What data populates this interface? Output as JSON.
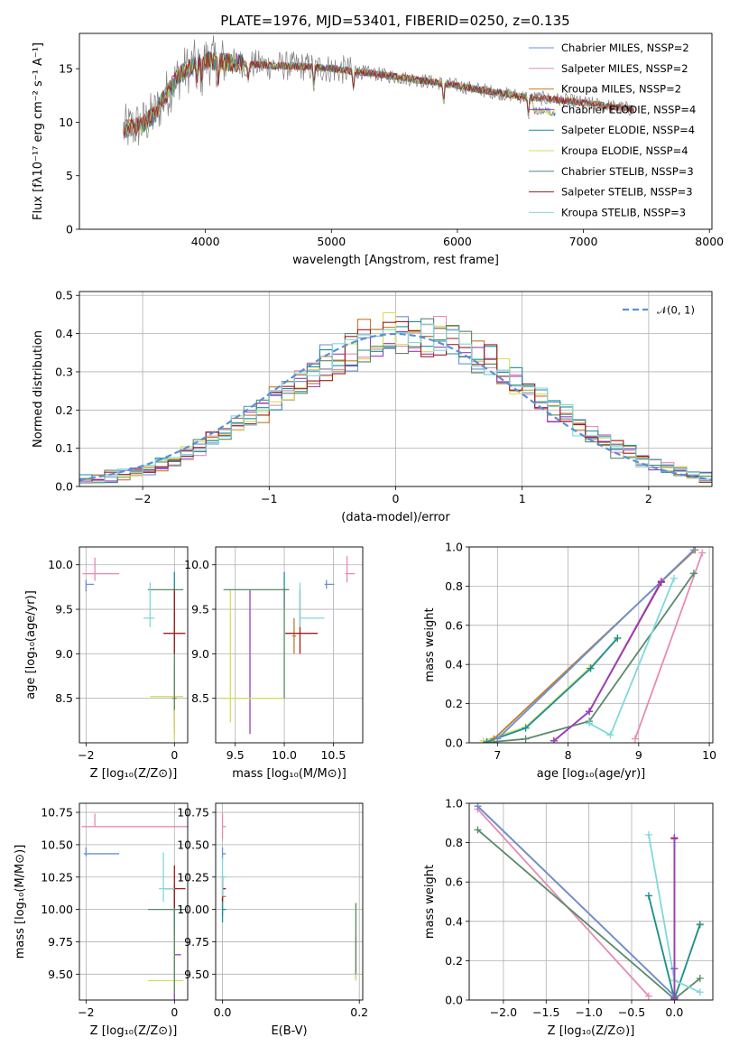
{
  "figure": {
    "title": "PLATE=1976, MJD=53401, FIBERID=0250, z=0.135"
  },
  "palette": {
    "Chabrier MILES": "#6b8fd8",
    "Salpeter MILES": "#e68bb5",
    "Kroupa MILES": "#c27b2b",
    "Chabrier ELODIE": "#9b3fbf",
    "Salpeter ELODIE": "#1b8f9b",
    "Kroupa ELODIE": "#d7dd5f",
    "Chabrier STELIB": "#5a8a6a",
    "Salpeter STELIB": "#a01e1e",
    "Kroupa STELIB": "#7fd8dc",
    "data": "#808080",
    "gaussian": "#5b8fd6"
  },
  "chart_data": [
    {
      "id": "spectrum",
      "type": "line",
      "title": "PLATE=1976, MJD=53401, FIBERID=0250, z=0.135",
      "xlabel": "wavelength [Angstrom, rest frame]",
      "ylabel": "Flux [fλ10⁻¹⁷ erg cm⁻² s⁻¹ A⁻¹]",
      "xlim": [
        3000,
        8020
      ],
      "ylim": [
        0,
        18.3
      ],
      "xticks": [
        4000,
        5000,
        6000,
        7000,
        8000
      ],
      "yticks": [
        0,
        5,
        10,
        15
      ],
      "grid": false,
      "legend_position": "top-right",
      "legend": [
        "Chabrier MILES, NSSP=2",
        "Salpeter MILES, NSSP=2",
        "Kroupa MILES, NSSP=2",
        "Chabrier ELODIE, NSSP=4",
        "Salpeter ELODIE, NSSP=4",
        "Kroupa ELODIE, NSSP=4",
        "Chabrier STELIB, NSSP=3",
        "Salpeter STELIB, NSSP=3",
        "Kroupa STELIB, NSSP=3"
      ],
      "continuum": {
        "x": [
          3350,
          3500,
          3600,
          3700,
          3800,
          3900,
          4000,
          4200,
          4500,
          4800,
          5000,
          5300,
          5600,
          5900,
          6200,
          6500,
          6800,
          7000,
          7200,
          7400
        ],
        "y": [
          9.3,
          9.8,
          10.8,
          12.8,
          14.5,
          15.3,
          15.8,
          15.6,
          15.3,
          15.2,
          15.0,
          14.6,
          14.1,
          13.6,
          13.0,
          12.4,
          12.1,
          11.8,
          11.5,
          11.2
        ]
      }
    },
    {
      "id": "residuals",
      "type": "line",
      "xlabel": "(data-model)/error",
      "ylabel": "Normed distribution",
      "xlim": [
        -2.5,
        2.5
      ],
      "ylim": [
        0,
        0.51
      ],
      "xticks": [
        -2,
        -1,
        0,
        1,
        2
      ],
      "yticks": [
        0.0,
        0.1,
        0.2,
        0.3,
        0.4,
        0.5
      ],
      "grid": true,
      "legend_position": "top-right",
      "legend": [
        "𝒩(0, 1)"
      ]
    },
    {
      "id": "age_vs_Z",
      "type": "scatter",
      "xlabel": "Z [log₁₀(Z/Z⊙)]",
      "ylabel": "age  [log₁₀(age/yr)]",
      "xlim": [
        -2.15,
        0.3
      ],
      "ylim": [
        8.0,
        10.2
      ],
      "xticks": [
        -2,
        0
      ],
      "yticks": [
        8.5,
        9.0,
        9.5,
        10.0
      ],
      "grid": true
    },
    {
      "id": "age_vs_mass",
      "type": "scatter",
      "xlabel": "mass [log₁₀(M/M⊙)]",
      "xlim": [
        9.3,
        10.8
      ],
      "ylim": [
        8.0,
        10.2
      ],
      "xticks": [
        9.5,
        10.0,
        10.5
      ],
      "yticks": [
        8.5,
        9.0,
        9.5,
        10.0
      ],
      "grid": true
    },
    {
      "id": "mw_vs_age",
      "type": "line",
      "xlabel": "age  [log₁₀(age/yr)]",
      "ylabel": "mass weight",
      "xlim": [
        6.6,
        10.05
      ],
      "ylim": [
        0,
        1.0
      ],
      "xticks": [
        7,
        8,
        9,
        10
      ],
      "yticks": [
        0.0,
        0.2,
        0.4,
        0.6,
        0.8,
        1.0
      ],
      "grid": true
    },
    {
      "id": "mass_vs_Z",
      "type": "scatter",
      "xlabel": "Z [log₁₀(Z/Z⊙)]",
      "ylabel": "mass [log₁₀(M/M⊙)]",
      "xlim": [
        -2.15,
        0.3
      ],
      "ylim": [
        9.3,
        10.82
      ],
      "xticks": [
        -2,
        0
      ],
      "yticks": [
        9.5,
        9.75,
        10.0,
        10.25,
        10.5,
        10.75
      ],
      "grid": true
    },
    {
      "id": "mass_vs_ebv",
      "type": "scatter",
      "xlabel": "E(B-V)",
      "xlim": [
        -0.01,
        0.205
      ],
      "ylim": [
        9.3,
        10.82
      ],
      "xticks": [
        0.0,
        0.2
      ],
      "yticks": [
        9.5,
        9.75,
        10.0,
        10.25,
        10.5,
        10.75
      ],
      "grid": true
    },
    {
      "id": "mw_vs_Z",
      "type": "line",
      "xlabel": "Z [log₁₀(Z/Z⊙)]",
      "ylabel": "mass weight",
      "xlim": [
        -2.4,
        0.45
      ],
      "ylim": [
        0,
        1.0
      ],
      "xticks": [
        -2.0,
        -1.5,
        -1.0,
        -0.5,
        0.0
      ],
      "yticks": [
        0.0,
        0.2,
        0.4,
        0.6,
        0.8,
        1.0
      ],
      "grid": true
    }
  ],
  "series": {
    "age_vs_Z": [
      {
        "model": "Chabrier MILES",
        "x": -2.0,
        "y": 9.78,
        "xerr": [
          0.0,
          0.18
        ],
        "yerr": [
          0.08,
          0.05
        ]
      },
      {
        "model": "Salpeter MILES",
        "x": -1.8,
        "y": 9.9,
        "xerr": [
          0.28,
          0.55
        ],
        "yerr": [
          0.08,
          0.18
        ]
      },
      {
        "model": "Kroupa MILES",
        "x": 0.0,
        "y": 8.5,
        "xerr": [
          0.05,
          0.05
        ],
        "yerr": [
          0.4,
          0.3
        ]
      },
      {
        "model": "Chabrier ELODIE",
        "x": 0.0,
        "y": 8.5,
        "xerr": [
          0.02,
          0.02
        ],
        "yerr": [
          0.3,
          0.35
        ]
      },
      {
        "model": "Salpeter ELODIE",
        "x": 0.0,
        "y": 9.72,
        "xerr": [
          0.01,
          0.01
        ],
        "yerr": [
          0.2,
          0.2
        ]
      },
      {
        "model": "Kroupa ELODIE",
        "x": 0.0,
        "y": 8.52,
        "xerr": [
          0.55,
          0.2
        ],
        "yerr": [
          0.5,
          0.5
        ]
      },
      {
        "model": "Chabrier STELIB",
        "x": 0.0,
        "y": 9.72,
        "xerr": [
          0.6,
          0.2
        ],
        "yerr": [
          1.35,
          0.0
        ]
      },
      {
        "model": "Salpeter STELIB",
        "x": 0.0,
        "y": 9.23,
        "xerr": [
          0.25,
          0.25
        ],
        "yerr": [
          0.23,
          0.49
        ]
      },
      {
        "model": "Kroupa STELIB",
        "x": -0.55,
        "y": 9.4,
        "xerr": [
          0.15,
          0.1
        ],
        "yerr": [
          0.1,
          0.4
        ]
      }
    ],
    "age_vs_mass": [
      {
        "model": "Chabrier MILES",
        "x": 10.43,
        "y": 9.78,
        "xerr": [
          0.02,
          0.08
        ],
        "yerr": [
          0.05,
          0.05
        ]
      },
      {
        "model": "Salpeter MILES",
        "x": 10.64,
        "y": 9.9,
        "xerr": [
          0.02,
          0.08
        ],
        "yerr": [
          0.1,
          0.2
        ]
      },
      {
        "model": "Kroupa MILES",
        "x": 10.1,
        "y": 9.2,
        "xerr": [
          0.02,
          0.02
        ],
        "yerr": [
          0.2,
          0.2
        ]
      },
      {
        "model": "Chabrier ELODIE",
        "x": 9.65,
        "y": 9.72,
        "xerr": [
          0.0,
          0.0
        ],
        "yerr": [
          1.62,
          0.0
        ]
      },
      {
        "model": "Salpeter ELODIE",
        "x": 10.0,
        "y": 9.72,
        "xerr": [
          0.02,
          0.02
        ],
        "yerr": [
          0.2,
          0.2
        ]
      },
      {
        "model": "Kroupa ELODIE",
        "x": 9.45,
        "y": 8.5,
        "xerr": [
          0.1,
          0.55
        ],
        "yerr": [
          0.27,
          1.22
        ]
      },
      {
        "model": "Chabrier STELIB",
        "x": 10.0,
        "y": 9.72,
        "xerr": [
          0.62,
          0.05
        ],
        "yerr": [
          1.22,
          0.0
        ]
      },
      {
        "model": "Salpeter STELIB",
        "x": 10.16,
        "y": 9.23,
        "xerr": [
          0.15,
          0.18
        ],
        "yerr": [
          0.23,
          0.49
        ]
      },
      {
        "model": "Kroupa STELIB",
        "x": 10.16,
        "y": 9.4,
        "xerr": [
          0.0,
          0.25
        ],
        "yerr": [
          0.1,
          0.4
        ]
      }
    ],
    "mw_vs_age": [
      {
        "model": "Kroupa ELODIE",
        "x": [
          6.8,
          7.4,
          8.3,
          8.7
        ],
        "y": [
          0.01,
          0.08,
          0.38,
          0.53
        ]
      },
      {
        "model": "Salpeter ELODIE",
        "x": [
          6.85,
          7.4,
          8.32,
          8.7
        ],
        "y": [
          0.005,
          0.075,
          0.38,
          0.535
        ]
      },
      {
        "model": "Kroupa MILES",
        "x": [
          6.95,
          9.8
        ],
        "y": [
          0.02,
          0.985
        ]
      },
      {
        "model": "Salpeter MILES",
        "x": [
          8.95,
          9.9
        ],
        "y": [
          0.02,
          0.97
        ]
      },
      {
        "model": "Chabrier MILES",
        "x": [
          7.0,
          9.78
        ],
        "y": [
          0.02,
          0.985
        ]
      },
      {
        "model": "Salpeter STELIB",
        "x": [
          7.8,
          8.3,
          9.32
        ],
        "y": [
          0.01,
          0.16,
          0.82
        ]
      },
      {
        "model": "Chabrier STELIB",
        "x": [
          6.95,
          7.4,
          8.3,
          9.78
        ],
        "y": [
          0.005,
          0.02,
          0.11,
          0.865
        ]
      },
      {
        "model": "Kroupa STELIB",
        "x": [
          8.3,
          8.6,
          9.5
        ],
        "y": [
          0.1,
          0.04,
          0.84
        ]
      },
      {
        "model": "Chabrier ELODIE",
        "x": [
          7.8,
          8.3,
          9.32
        ],
        "y": [
          0.01,
          0.16,
          0.825
        ]
      }
    ],
    "mass_vs_Z": [
      {
        "model": "Chabrier MILES",
        "x": -2.0,
        "y": 10.43,
        "xerr": [
          0.05,
          0.75
        ],
        "yerr": [
          0.02,
          0.05
        ]
      },
      {
        "model": "Salpeter MILES",
        "x": -1.8,
        "y": 10.64,
        "xerr": [
          0.3,
          2.2
        ],
        "yerr": [
          0.0,
          0.1
        ]
      },
      {
        "model": "Kroupa MILES",
        "x": 0.0,
        "y": 10.0,
        "xerr": [
          0.02,
          0.02
        ],
        "yerr": [
          0.2,
          0.2
        ]
      },
      {
        "model": "Chabrier ELODIE",
        "x": 0.0,
        "y": 9.65,
        "xerr": [
          0.0,
          0.15
        ],
        "yerr": [
          0.35,
          0.5
        ]
      },
      {
        "model": "Salpeter ELODIE",
        "x": 0.0,
        "y": 10.0,
        "xerr": [
          0.02,
          0.02
        ],
        "yerr": [
          0.15,
          0.15
        ]
      },
      {
        "model": "Kroupa ELODIE",
        "x": 0.0,
        "y": 9.45,
        "xerr": [
          0.6,
          0.2
        ],
        "yerr": [
          0.1,
          0.35
        ]
      },
      {
        "model": "Chabrier STELIB",
        "x": 0.0,
        "y": 10.0,
        "xerr": [
          0.6,
          0.25
        ],
        "yerr": [
          0.65,
          0.05
        ]
      },
      {
        "model": "Salpeter STELIB",
        "x": 0.0,
        "y": 10.16,
        "xerr": [
          0.25,
          0.25
        ],
        "yerr": [
          0.15,
          0.18
        ]
      },
      {
        "model": "Kroupa STELIB",
        "x": -0.25,
        "y": 10.16,
        "xerr": [
          0.1,
          0.25
        ],
        "yerr": [
          0.1,
          0.28
        ]
      }
    ],
    "mass_vs_ebv": [
      {
        "model": "Chabrier MILES",
        "x": 0.0,
        "y": 10.43,
        "xerr": [
          0.0,
          0.005
        ],
        "yerr": [
          0.05,
          0.05
        ]
      },
      {
        "model": "Salpeter MILES",
        "x": 0.0,
        "y": 10.64,
        "xerr": [
          0.0,
          0.005
        ],
        "yerr": [
          0.1,
          0.1
        ]
      },
      {
        "model": "Kroupa MILES",
        "x": 0.0,
        "y": 10.1,
        "xerr": [
          0.0,
          0.005
        ],
        "yerr": [
          0.15,
          0.15
        ]
      },
      {
        "model": "Chabrier ELODIE",
        "x": 0.195,
        "y": 9.65,
        "xerr": [
          0.0,
          0.0
        ],
        "yerr": [
          0.2,
          0.15
        ]
      },
      {
        "model": "Salpeter ELODIE",
        "x": 0.0,
        "y": 10.0,
        "xerr": [
          0.0,
          0.005
        ],
        "yerr": [
          0.1,
          0.1
        ]
      },
      {
        "model": "Kroupa ELODIE",
        "x": 0.195,
        "y": 9.75,
        "xerr": [
          0.0,
          0.0
        ],
        "yerr": [
          0.3,
          0.3
        ]
      },
      {
        "model": "Chabrier STELIB",
        "x": 0.195,
        "y": 9.75,
        "xerr": [
          0.0,
          0.0
        ],
        "yerr": [
          0.25,
          0.3
        ]
      },
      {
        "model": "Salpeter STELIB",
        "x": 0.0,
        "y": 10.16,
        "xerr": [
          0.0,
          0.005
        ],
        "yerr": [
          0.1,
          0.1
        ]
      },
      {
        "model": "Kroupa STELIB",
        "x": 0.0,
        "y": 10.25,
        "xerr": [
          0.0,
          0.005
        ],
        "yerr": [
          0.15,
          0.15
        ]
      }
    ],
    "mw_vs_Z": [
      {
        "model": "Kroupa ELODIE",
        "x": [
          -0.3,
          0.0,
          0.3
        ],
        "y": [
          0.53,
          0.01,
          0.38
        ]
      },
      {
        "model": "Salpeter ELODIE",
        "x": [
          -0.3,
          0.0,
          0.3
        ],
        "y": [
          0.53,
          0.005,
          0.385
        ]
      },
      {
        "model": "Kroupa MILES",
        "x": [
          -2.3,
          0.0
        ],
        "y": [
          0.985,
          0.02
        ]
      },
      {
        "model": "Salpeter MILES",
        "x": [
          -2.3,
          -0.3
        ],
        "y": [
          0.97,
          0.02
        ]
      },
      {
        "model": "Chabrier MILES",
        "x": [
          -2.3,
          0.0
        ],
        "y": [
          0.985,
          0.02
        ]
      },
      {
        "model": "Salpeter STELIB",
        "x": [
          0.0,
          0.0,
          0.0
        ],
        "y": [
          0.01,
          0.16,
          0.82
        ]
      },
      {
        "model": "Chabrier STELIB",
        "x": [
          -2.3,
          0.0,
          0.3
        ],
        "y": [
          0.865,
          0.005,
          0.11
        ]
      },
      {
        "model": "Kroupa STELIB",
        "x": [
          -0.3,
          0.0,
          0.3
        ],
        "y": [
          0.84,
          0.1,
          0.04
        ]
      },
      {
        "model": "Chabrier ELODIE",
        "x": [
          0.0,
          0.0,
          0.0
        ],
        "y": [
          0.01,
          0.16,
          0.825
        ]
      }
    ]
  }
}
